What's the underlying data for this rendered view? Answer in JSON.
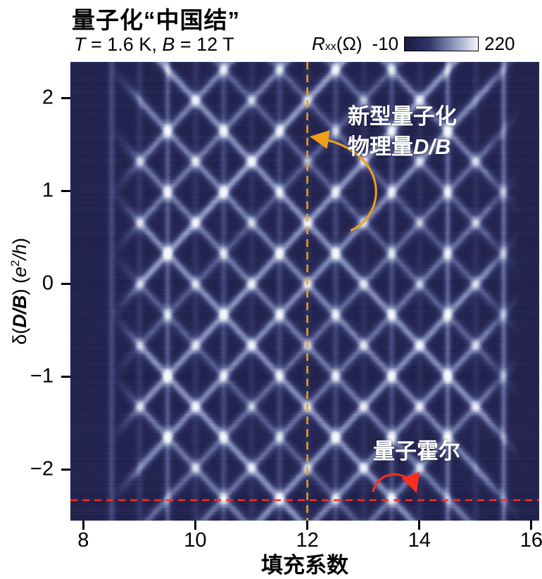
{
  "header": {
    "title": "量子化“中国结”",
    "temp_symbol": "T",
    "temp_value": " = 1.6 K, ",
    "field_symbol": "B",
    "field_value": " = 12 T"
  },
  "colorbar": {
    "quantity_symbol": "R",
    "quantity_subscript": "xx",
    "quantity_unit": " (Ω)",
    "min_label": "-10",
    "max_label": "220",
    "gradient": [
      "#1b1b42",
      "#2f3467",
      "#8d95bd",
      "#f4f6fb"
    ]
  },
  "axes": {
    "x_title": "填充系数",
    "x_tick_labels": [
      "8",
      "10",
      "12",
      "14",
      "16"
    ],
    "y_tick_labels": [
      "2",
      "1",
      "0",
      "−1",
      "−2"
    ],
    "y_title": {
      "prefix": "δ(",
      "italic1": "D/B",
      "mid": ") (",
      "italic2": "e",
      "sup": "2",
      "italic3": "/h",
      "suffix": ")"
    }
  },
  "annotations_text": {
    "db_line1": "新型量子化",
    "db_line2_prefix": "物理量",
    "db_line2_italic": "D/B",
    "qh_label": "量子霍尔"
  },
  "chart_data": {
    "type": "heatmap",
    "title": "量子化“中国结”",
    "subtitle": "T = 1.6 K, B = 12 T",
    "xlabel": "填充系数 (filling factor)",
    "ylabel": "δ(D/B) (e²/h)",
    "x_range": [
      7.77,
      16.14
    ],
    "y_range": [
      -2.55,
      2.39
    ],
    "x_ticks": [
      8,
      10,
      12,
      14,
      16
    ],
    "y_ticks": [
      2,
      1,
      0,
      -1,
      -2
    ],
    "grid": false,
    "colorbar": {
      "label": "Rxx (Ω)",
      "min": -10,
      "max": 220,
      "position": "top-right"
    },
    "colormap": [
      "#1e1e47",
      "#3c4175",
      "#7e87b2",
      "#c9d0e2",
      "#f4f6fb"
    ],
    "pattern": {
      "description": "Dark navy background (Rxx minima) crossed by bright Landau-level lines forming a woven 'Chinese knot' lattice: vertical bright stripes at half-integer filling factors plus two families of diagonal lines with slope ±0.66 δ(D/B) per unit filling factor, intersecting around ν = 12 and forming diamond crossings between ν ≈ 9 and 15.5.",
      "vertical_stripes_nu": [
        8.5,
        9,
        9.5,
        10,
        10.5,
        11,
        11.5,
        12,
        12.5,
        13,
        13.5,
        14,
        14.5,
        15,
        15.5
      ],
      "diagonal_slope": 0.66,
      "diagonal_offsets": [
        -3.3,
        -2.64,
        -1.98,
        -1.32,
        -0.66,
        0,
        0.66,
        1.32,
        1.98,
        2.64,
        3.3
      ],
      "diagonal_nu_extent": [
        8.5,
        15.8
      ]
    },
    "annotations": {
      "db_line": {
        "nu": 12,
        "color": "#f2a019",
        "label": "新型量子化物理量D/B"
      },
      "qh_line": {
        "delta": -2.33,
        "color": "#fb2e20",
        "label": "量子霍尔"
      }
    }
  }
}
